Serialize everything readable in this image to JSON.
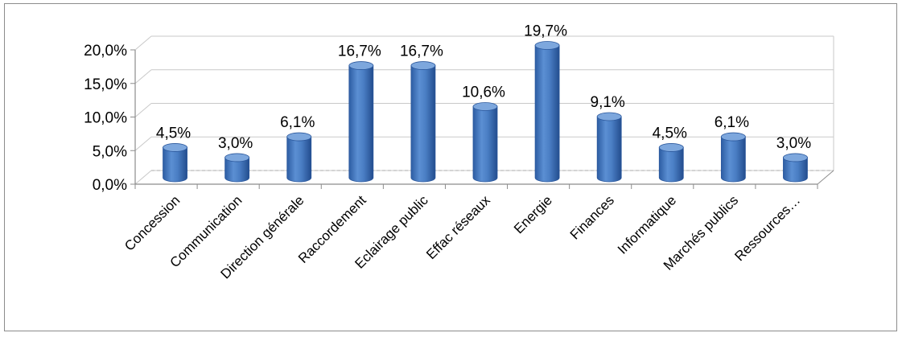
{
  "chart_data": {
    "type": "bar",
    "categories": [
      "Concession",
      "Communication",
      "Direction générale",
      "Raccordement",
      "Eclairage public",
      "Effac réseaux",
      "Energie",
      "Finances",
      "Informatique",
      "Marchés publics",
      "Ressources…"
    ],
    "values": [
      4.5,
      3.0,
      6.1,
      16.7,
      16.7,
      10.6,
      19.7,
      9.1,
      4.5,
      6.1,
      3.0
    ],
    "value_labels": [
      "4,5%",
      "3,0%",
      "6,1%",
      "16,7%",
      "16,7%",
      "10,6%",
      "19,7%",
      "9,1%",
      "4,5%",
      "6,1%",
      "3,0%"
    ],
    "y_ticks": [
      "0,0%",
      "5,0%",
      "10,0%",
      "15,0%",
      "20,0%"
    ],
    "ylim": [
      0,
      20
    ],
    "title": "",
    "xlabel": "",
    "ylabel": "",
    "grid": true,
    "legend": "none",
    "bar_style": "3d-cylinder",
    "colors": {
      "bar": "#4a7ec4",
      "bar_dark": "#2a579c",
      "bar_light": "#7da7dd",
      "grid": "#c9c9c9",
      "axis": "#8c8c8c",
      "frame": "#8c8c8c"
    }
  }
}
